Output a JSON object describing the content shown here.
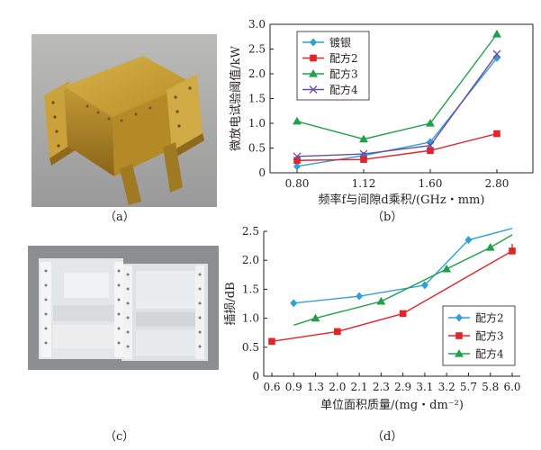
{
  "captions": {
    "a": "（a）",
    "b": "（b）",
    "c": "（c）",
    "d": "（d）"
  },
  "chart_data": [
    {
      "type": "line",
      "ylabel": "微放电试验阈值/kW",
      "xlabel": "频率f与间隙d乘积/(GHz・mm)",
      "categories": [
        "0.80",
        "1.12",
        "1.60",
        "2.80"
      ],
      "ylim": [
        0,
        3.0
      ],
      "yticks": [
        "0",
        "0.5",
        "1.0",
        "1.5",
        "2.0",
        "2.5",
        "3.0"
      ],
      "grid": false,
      "legend_position": "top-left",
      "series": [
        {
          "name": "镀银",
          "color": "#2e9fd8",
          "marker": "diamond",
          "values": [
            0.13,
            0.35,
            0.62,
            2.32
          ]
        },
        {
          "name": "配方2",
          "color": "#e2232a",
          "marker": "square",
          "values": [
            0.25,
            0.27,
            0.45,
            0.79
          ]
        },
        {
          "name": "配方3",
          "color": "#21a04a",
          "marker": "triangle",
          "values": [
            1.04,
            0.68,
            1.0,
            2.8
          ]
        },
        {
          "name": "配方4",
          "color": "#6a4fa1",
          "marker": "x",
          "values": [
            0.33,
            0.38,
            0.55,
            2.4
          ]
        }
      ]
    },
    {
      "type": "line",
      "ylabel": "插损/dB",
      "xlabel": "单位面积质量/(mg・dm⁻²)",
      "categories": [
        "0.6",
        "0.9",
        "1.3",
        "2.0",
        "2.1",
        "2.3",
        "2.9",
        "3.1",
        "3.2",
        "5.7",
        "5.8",
        "6.0"
      ],
      "ylim": [
        0,
        2.5
      ],
      "yticks": [
        "0",
        "0.5",
        "1.0",
        "1.5",
        "2.0",
        "2.5"
      ],
      "grid": false,
      "legend_position": "bottom-right",
      "series": [
        {
          "name": "配方2",
          "color": "#2e9fd8",
          "marker": "diamond",
          "points": [
            [
              0.9,
              1.26
            ],
            [
              2.1,
              1.38
            ],
            [
              3.1,
              1.57
            ],
            [
              5.7,
              2.35
            ]
          ],
          "start": [
            0.9,
            1.24
          ],
          "end": [
            6.0,
            2.55
          ]
        },
        {
          "name": "配方3",
          "color": "#e2232a",
          "marker": "square",
          "points": [
            [
              0.6,
              0.6
            ],
            [
              2.0,
              0.77
            ],
            [
              2.9,
              1.08
            ],
            [
              6.0,
              2.16
            ]
          ],
          "end": [
            6.0,
            2.28
          ]
        },
        {
          "name": "配方4",
          "color": "#21a04a",
          "marker": "triangle",
          "points": [
            [
              1.3,
              1.0
            ],
            [
              2.3,
              1.29
            ],
            [
              3.2,
              1.85
            ],
            [
              5.8,
              2.22
            ]
          ],
          "start": [
            0.9,
            0.88
          ],
          "end": [
            6.0,
            2.44
          ]
        }
      ]
    }
  ]
}
